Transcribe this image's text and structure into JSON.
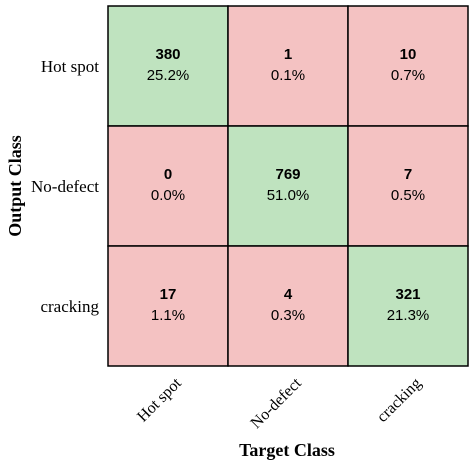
{
  "chart_data": {
    "type": "heatmap",
    "xlabel": "Target Class",
    "ylabel": "Output Class",
    "x_categories": [
      "Hot spot",
      "No-defect",
      "cracking"
    ],
    "y_categories": [
      "Hot spot",
      "No-defect",
      "cracking"
    ],
    "cells": [
      [
        {
          "count": "380",
          "percent": "25.2%"
        },
        {
          "count": "1",
          "percent": "0.1%"
        },
        {
          "count": "10",
          "percent": "0.7%"
        }
      ],
      [
        {
          "count": "0",
          "percent": "0.0%"
        },
        {
          "count": "769",
          "percent": "51.0%"
        },
        {
          "count": "7",
          "percent": "0.5%"
        }
      ],
      [
        {
          "count": "17",
          "percent": "1.1%"
        },
        {
          "count": "4",
          "percent": "0.3%"
        },
        {
          "count": "321",
          "percent": "21.3%"
        }
      ]
    ],
    "colors": {
      "correct": "#bfe3bf",
      "incorrect": "#f4c2c2",
      "border": "#000000"
    }
  }
}
